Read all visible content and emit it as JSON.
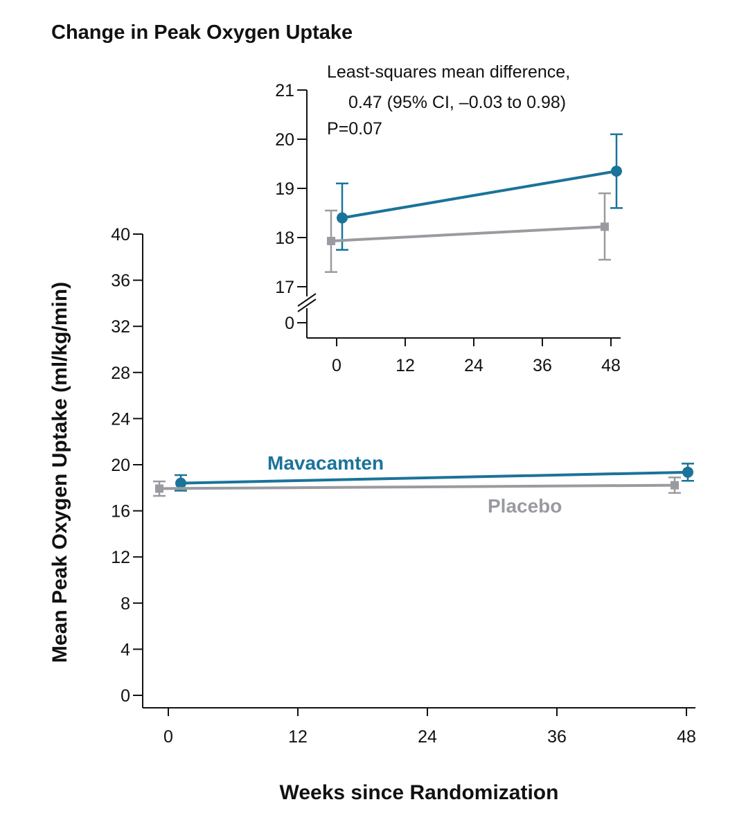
{
  "chart_data": {
    "type": "line",
    "title": "Change in Peak Oxygen Uptake",
    "xlabel": "Weeks since Randomization",
    "ylabel": "Mean Peak Oxygen Uptake (ml/kg/min)",
    "x_ticks": [
      0,
      12,
      24,
      36,
      48
    ],
    "y_ticks": [
      0,
      4,
      8,
      12,
      16,
      20,
      24,
      28,
      32,
      36,
      40
    ],
    "xlim": [
      -2,
      49
    ],
    "ylim": [
      0,
      40
    ],
    "series": [
      {
        "name": "Mavacamten",
        "color": "#1a7399",
        "marker": "circle",
        "points": [
          {
            "x": 0,
            "y": 18.4,
            "lo": 17.75,
            "hi": 19.1
          },
          {
            "x": 48,
            "y": 19.35,
            "lo": 18.6,
            "hi": 20.1
          }
        ]
      },
      {
        "name": "Placebo",
        "color": "#999ba0",
        "marker": "square",
        "points": [
          {
            "x": 0,
            "y": 17.93,
            "lo": 17.3,
            "hi": 18.55
          },
          {
            "x": 48,
            "y": 18.22,
            "lo": 17.55,
            "hi": 18.9
          }
        ]
      }
    ],
    "inset": {
      "x_ticks": [
        0,
        12,
        24,
        36,
        48
      ],
      "y_ticks": [
        17,
        18,
        19,
        20,
        21
      ],
      "y_break_tick": 0,
      "ylim": [
        16.5,
        21
      ],
      "xlim": [
        -3,
        50
      ],
      "annotation": [
        "Least-squares mean difference,",
        "0.47 (95% CI, –0.03 to 0.98)",
        "P=0.07"
      ]
    }
  }
}
